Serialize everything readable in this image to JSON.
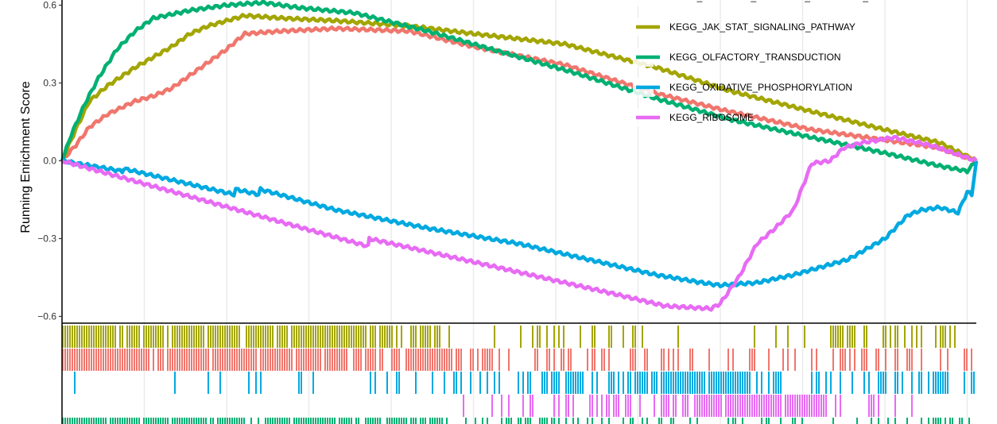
{
  "chart_data": {
    "type": "line",
    "title": "",
    "xlabel": "",
    "ylabel": "Running Enrichment Score",
    "ylim": [
      -0.62,
      0.62
    ],
    "xlim": [
      0,
      100
    ],
    "y_ticks": [
      {
        "value": 0.6,
        "label": "0.6"
      },
      {
        "value": 0.3,
        "label": "0.3"
      },
      {
        "value": 0.0,
        "label": "0.0"
      },
      {
        "value": -0.3,
        "label": "−0.3"
      },
      {
        "value": -0.6,
        "label": "−0.6"
      }
    ],
    "x_gridlines": [
      0,
      9,
      18,
      27,
      36,
      45,
      54,
      63,
      72,
      81,
      90,
      99
    ],
    "legend_position": "top-right",
    "series": [
      {
        "name": "KEGG_CYTOKINE_CYTOKINE_RECEPTOR_INTERACTION",
        "color": "#f0766d",
        "x": [
          0,
          1.5,
          3,
          5,
          8,
          10,
          12,
          14,
          16,
          18,
          20,
          24,
          30,
          38,
          45,
          55,
          65,
          73,
          82,
          90,
          96,
          100
        ],
        "y": [
          0.0,
          0.06,
          0.13,
          0.18,
          0.23,
          0.25,
          0.28,
          0.33,
          0.38,
          0.43,
          0.49,
          0.5,
          0.51,
          0.5,
          0.44,
          0.37,
          0.26,
          0.19,
          0.12,
          0.08,
          0.05,
          0.0
        ]
      },
      {
        "name": "KEGG_JAK_STAT_SIGNALING_PATHWAY",
        "color": "#a3a500",
        "x": [
          0,
          1.5,
          3,
          5,
          8,
          10,
          12,
          14,
          16,
          18,
          20,
          24,
          30,
          38,
          45,
          50,
          55,
          65,
          73,
          82,
          90,
          96,
          100
        ],
        "y": [
          0.0,
          0.12,
          0.23,
          0.29,
          0.36,
          0.4,
          0.44,
          0.49,
          0.52,
          0.54,
          0.56,
          0.55,
          0.54,
          0.52,
          0.49,
          0.47,
          0.45,
          0.36,
          0.27,
          0.19,
          0.12,
          0.07,
          0.0
        ]
      },
      {
        "name": "KEGG_OLFACTORY_TRANSDUCTION",
        "color": "#00b072",
        "x": [
          0,
          1,
          2.5,
          4,
          6,
          8,
          10,
          14,
          18,
          22,
          26,
          32,
          40,
          48,
          56,
          65,
          73,
          82,
          90,
          96,
          99,
          100
        ],
        "y": [
          0.0,
          0.1,
          0.22,
          0.32,
          0.43,
          0.5,
          0.55,
          0.58,
          0.6,
          0.61,
          0.59,
          0.57,
          0.5,
          0.42,
          0.34,
          0.24,
          0.16,
          0.09,
          0.03,
          -0.02,
          -0.04,
          0.0
        ]
      },
      {
        "name": "KEGG_OXIDATIVE_PHOSPHORYLATION",
        "color": "#00a9e0",
        "x": [
          0,
          6.6,
          6.7,
          18.8,
          19,
          21.5,
          21.7,
          30,
          40,
          50,
          55,
          60,
          65,
          70,
          72,
          76,
          80,
          86,
          90,
          92.5,
          94,
          96,
          98,
          99,
          99.5,
          100
        ],
        "y": [
          0.0,
          -0.04,
          -0.03,
          -0.13,
          -0.11,
          -0.13,
          -0.11,
          -0.19,
          -0.26,
          -0.32,
          -0.36,
          -0.4,
          -0.44,
          -0.47,
          -0.48,
          -0.47,
          -0.44,
          -0.38,
          -0.3,
          -0.21,
          -0.19,
          -0.18,
          -0.2,
          -0.12,
          -0.13,
          0.0
        ]
      },
      {
        "name": "KEGG_RIBOSOME",
        "color": "#e76bf3",
        "x": [
          0,
          33.5,
          33.6,
          45,
          55,
          60,
          66,
          71,
          72,
          74,
          76,
          78,
          80,
          82,
          84,
          85.5,
          87.5,
          91,
          95,
          100
        ],
        "y": [
          0.0,
          -0.33,
          -0.3,
          -0.39,
          -0.47,
          -0.51,
          -0.56,
          -0.57,
          -0.55,
          -0.45,
          -0.32,
          -0.26,
          -0.19,
          -0.01,
          0.0,
          0.05,
          0.07,
          0.09,
          0.06,
          0.0
        ]
      }
    ],
    "hit_rows": [
      {
        "name": "KEGG_JAK_STAT_SIGNALING_PATHWAY",
        "color": "#a3a500",
        "density": [
          0.95,
          0.85,
          0.88,
          0.92,
          0.55,
          0.35,
          0.25,
          0.18,
          0.12,
          0.12,
          0.55,
          0.15
        ]
      },
      {
        "name": "KEGG_CYTOKINE_CYTOKINE_RECEPTOR_INTERACTION",
        "color": "#f0766d",
        "density": [
          0.9,
          0.9,
          0.95,
          0.9,
          0.75,
          0.55,
          0.35,
          0.25,
          0.22,
          0.3,
          0.35,
          0.25
        ]
      },
      {
        "name": "KEGG_OXIDATIVE_PHOSPHORYLATION",
        "color": "#00a9e0",
        "density": [
          0.02,
          0.02,
          0.06,
          0.08,
          0.12,
          0.3,
          0.45,
          0.7,
          0.95,
          0.45,
          0.25,
          0.3
        ]
      },
      {
        "name": "KEGG_RIBOSOME",
        "color": "#e76bf3",
        "density": [
          0.0,
          0.0,
          0.0,
          0.0,
          0.04,
          0.1,
          0.25,
          0.45,
          0.85,
          0.95,
          0.3,
          0.1
        ]
      },
      {
        "name": "KEGG_OLFACTORY_TRANSDUCTION",
        "color": "#00b072",
        "density": [
          0.95,
          0.9,
          0.85,
          0.8,
          0.6,
          0.4,
          0.3,
          0.25,
          0.2,
          0.25,
          0.3,
          0.5
        ]
      }
    ],
    "legend": [
      {
        "label": "KEGG_CYTOKINE_CYTOKINE_RECEPTOR_INTERACTION",
        "color": "#f0766d"
      },
      {
        "label": "KEGG_JAK_STAT_SIGNALING_PATHWAY",
        "color": "#a3a500"
      },
      {
        "label": "KEGG_OLFACTORY_TRANSDUCTION",
        "color": "#00b072"
      },
      {
        "label": "KEGG_OXIDATIVE_PHOSPHORYLATION",
        "color": "#00a9e0"
      },
      {
        "label": "KEGG_RIBOSOME",
        "color": "#e76bf3"
      }
    ]
  }
}
